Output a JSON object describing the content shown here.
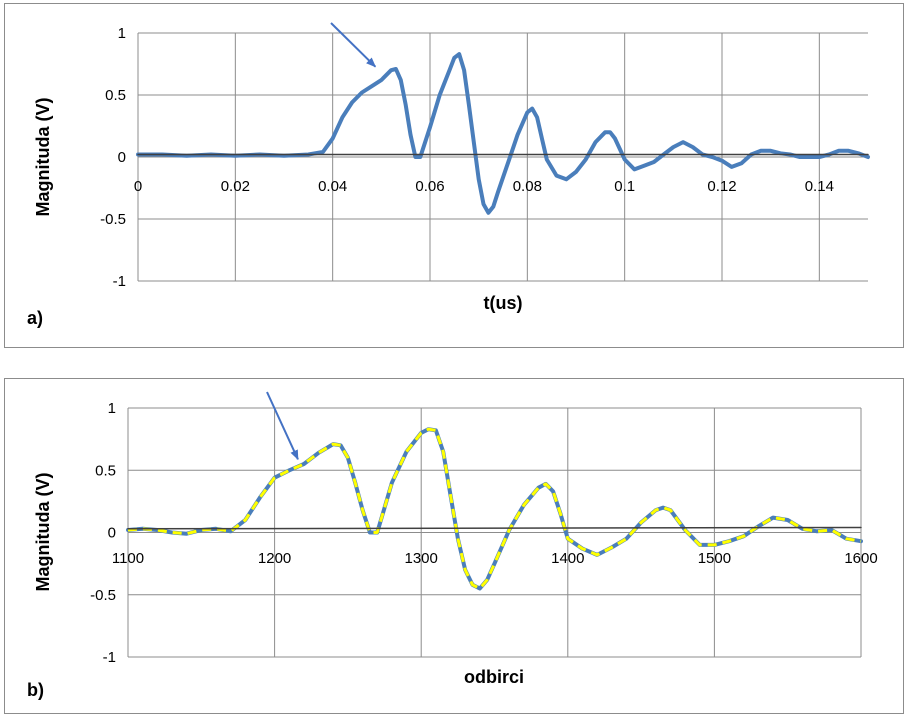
{
  "chart_data": [
    {
      "type": "line",
      "panel_label": "a)",
      "xlabel": "t(us)",
      "ylabel": "Magnituda (V)",
      "xlim": [
        0,
        0.15
      ],
      "ylim": [
        -1,
        1
      ],
      "xticks": [
        0,
        0.02,
        0.04,
        0.06,
        0.08,
        0.1,
        0.12,
        0.14
      ],
      "xtick_labels": [
        "0",
        "0.02",
        "0.04",
        "0.06",
        "0.08",
        "0.1",
        "0.12",
        "0.14"
      ],
      "yticks": [
        -1,
        -0.5,
        0,
        0.5,
        1
      ],
      "ytick_labels": [
        "-1",
        "-0.5",
        "0",
        "0.5",
        "1"
      ],
      "grid": true,
      "annotation": {
        "type": "arrow",
        "x": 0.05,
        "y": 0.68
      },
      "series": [
        {
          "color": "#4a7ebb",
          "style": "solid",
          "x": [
            0,
            0.005,
            0.01,
            0.015,
            0.02,
            0.025,
            0.03,
            0.035,
            0.038,
            0.04,
            0.042,
            0.044,
            0.046,
            0.048,
            0.05,
            0.052,
            0.053,
            0.054,
            0.055,
            0.056,
            0.057,
            0.058,
            0.06,
            0.062,
            0.064,
            0.065,
            0.066,
            0.067,
            0.068,
            0.069,
            0.07,
            0.071,
            0.072,
            0.073,
            0.074,
            0.076,
            0.078,
            0.08,
            0.081,
            0.082,
            0.083,
            0.084,
            0.086,
            0.088,
            0.09,
            0.092,
            0.094,
            0.096,
            0.097,
            0.098,
            0.1,
            0.102,
            0.104,
            0.106,
            0.108,
            0.11,
            0.112,
            0.114,
            0.116,
            0.118,
            0.12,
            0.122,
            0.124,
            0.126,
            0.128,
            0.13,
            0.132,
            0.134,
            0.136,
            0.138,
            0.14,
            0.142,
            0.144,
            0.146,
            0.148,
            0.15
          ],
          "y": [
            0.02,
            0.02,
            0.01,
            0.02,
            0.01,
            0.02,
            0.01,
            0.02,
            0.04,
            0.15,
            0.32,
            0.44,
            0.52,
            0.57,
            0.62,
            0.7,
            0.71,
            0.62,
            0.42,
            0.18,
            0.0,
            0.0,
            0.24,
            0.5,
            0.7,
            0.8,
            0.83,
            0.7,
            0.42,
            0.12,
            -0.18,
            -0.38,
            -0.45,
            -0.4,
            -0.28,
            -0.05,
            0.18,
            0.36,
            0.39,
            0.32,
            0.15,
            -0.02,
            -0.15,
            -0.18,
            -0.12,
            -0.02,
            0.12,
            0.2,
            0.2,
            0.15,
            -0.02,
            -0.1,
            -0.07,
            -0.04,
            0.02,
            0.08,
            0.12,
            0.08,
            0.02,
            0.0,
            -0.03,
            -0.08,
            -0.05,
            0.02,
            0.05,
            0.05,
            0.03,
            0.02,
            0.0,
            0.0,
            0.0,
            0.02,
            0.05,
            0.05,
            0.03,
            0.0
          ]
        },
        {
          "color": "#404040",
          "style": "baseline",
          "x": [
            0,
            0.15
          ],
          "y": [
            0.02,
            0.02
          ]
        }
      ]
    },
    {
      "type": "line",
      "panel_label": "b)",
      "xlabel": "odbirci",
      "ylabel": "Magnituda (V)",
      "xlim": [
        1100,
        1600
      ],
      "ylim": [
        -1,
        1
      ],
      "xticks": [
        1100,
        1200,
        1300,
        1400,
        1500,
        1600
      ],
      "xtick_labels": [
        "1100",
        "1200",
        "1300",
        "1400",
        "1500",
        "1600"
      ],
      "yticks": [
        -1,
        -0.5,
        0,
        0.5,
        1
      ],
      "ytick_labels": [
        "-1",
        "-0.5",
        "0",
        "0.5",
        "1"
      ],
      "grid": true,
      "annotation": {
        "type": "arrow",
        "x": 1220,
        "y": 0.54
      },
      "series": [
        {
          "color": "#4a7ebb",
          "style": "solid",
          "x": [
            1100,
            1110,
            1120,
            1130,
            1140,
            1150,
            1160,
            1170,
            1180,
            1190,
            1200,
            1210,
            1220,
            1230,
            1240,
            1245,
            1250,
            1255,
            1260,
            1265,
            1270,
            1275,
            1280,
            1290,
            1300,
            1305,
            1310,
            1315,
            1320,
            1325,
            1330,
            1335,
            1340,
            1345,
            1350,
            1360,
            1370,
            1380,
            1385,
            1390,
            1395,
            1400,
            1410,
            1420,
            1430,
            1440,
            1450,
            1460,
            1465,
            1470,
            1480,
            1490,
            1500,
            1510,
            1520,
            1530,
            1540,
            1550,
            1560,
            1570,
            1580,
            1590,
            1600
          ],
          "y": [
            0.02,
            0.03,
            0.02,
            0.0,
            -0.01,
            0.02,
            0.03,
            0.01,
            0.1,
            0.28,
            0.44,
            0.5,
            0.55,
            0.64,
            0.71,
            0.7,
            0.6,
            0.4,
            0.18,
            0.0,
            0.0,
            0.2,
            0.4,
            0.65,
            0.8,
            0.83,
            0.82,
            0.65,
            0.3,
            -0.05,
            -0.3,
            -0.42,
            -0.45,
            -0.38,
            -0.25,
            0.02,
            0.22,
            0.36,
            0.39,
            0.33,
            0.15,
            -0.05,
            -0.13,
            -0.18,
            -0.12,
            -0.05,
            0.08,
            0.18,
            0.2,
            0.18,
            0.02,
            -0.1,
            -0.1,
            -0.07,
            -0.03,
            0.05,
            0.12,
            0.1,
            0.03,
            0.01,
            0.02,
            -0.05,
            -0.07
          ]
        },
        {
          "color": "#ffff00",
          "style": "dashed",
          "x": [
            1100,
            1110,
            1120,
            1130,
            1140,
            1150,
            1160,
            1170,
            1180,
            1190,
            1200,
            1210,
            1220,
            1230,
            1240,
            1245,
            1250,
            1255,
            1260,
            1265,
            1270,
            1275,
            1280,
            1290,
            1300,
            1305,
            1310,
            1315,
            1320,
            1325,
            1330,
            1335,
            1340,
            1345,
            1350,
            1360,
            1370,
            1380,
            1385,
            1390,
            1395,
            1400,
            1410,
            1420,
            1430,
            1440,
            1450,
            1460,
            1465,
            1470,
            1480,
            1490,
            1500,
            1510,
            1520,
            1530,
            1540,
            1550,
            1560,
            1570,
            1580,
            1590,
            1600
          ],
          "y": [
            0.02,
            0.03,
            0.02,
            0.0,
            -0.01,
            0.02,
            0.03,
            0.01,
            0.1,
            0.28,
            0.44,
            0.5,
            0.55,
            0.64,
            0.71,
            0.7,
            0.6,
            0.4,
            0.18,
            0.0,
            0.0,
            0.2,
            0.4,
            0.65,
            0.8,
            0.83,
            0.82,
            0.65,
            0.3,
            -0.05,
            -0.3,
            -0.42,
            -0.45,
            -0.38,
            -0.25,
            0.02,
            0.22,
            0.36,
            0.39,
            0.33,
            0.15,
            -0.05,
            -0.13,
            -0.18,
            -0.12,
            -0.05,
            0.08,
            0.18,
            0.2,
            0.18,
            0.02,
            -0.1,
            -0.1,
            -0.07,
            -0.03,
            0.05,
            0.12,
            0.1,
            0.03,
            0.01,
            0.02,
            -0.05,
            -0.07
          ]
        },
        {
          "color": "#404040",
          "style": "baseline",
          "x": [
            1100,
            1600
          ],
          "y": [
            0.03,
            0.04
          ]
        }
      ]
    }
  ]
}
